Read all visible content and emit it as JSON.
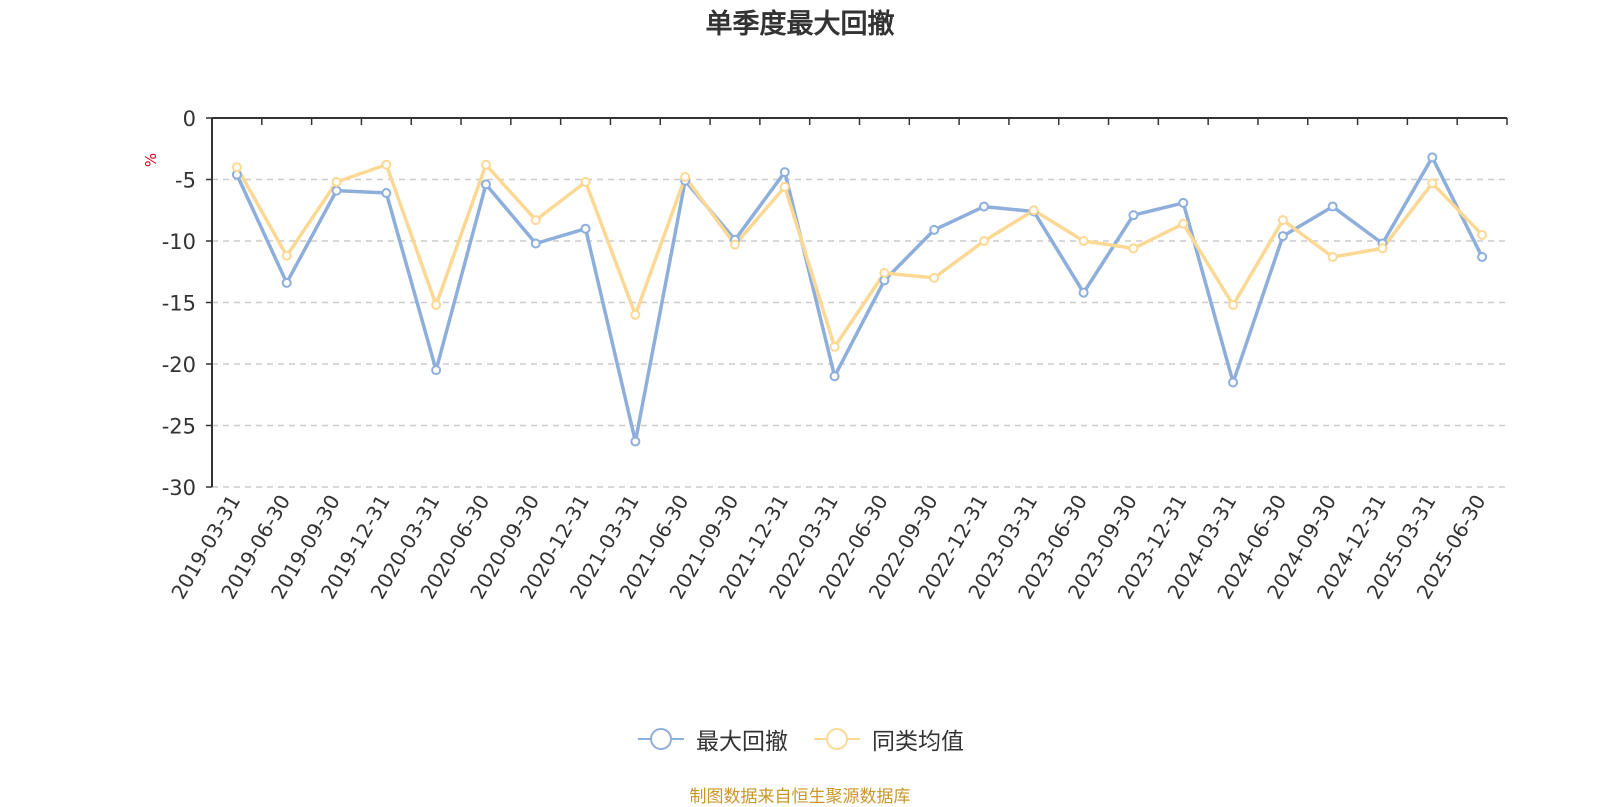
{
  "chart_data": {
    "type": "line",
    "title": "单季度最大回撤",
    "ylabel": "%",
    "xlabel": "",
    "ylim": [
      -30,
      0
    ],
    "yticks": [
      0,
      -5,
      -10,
      -15,
      -20,
      -25,
      -30
    ],
    "grid": true,
    "legend_position": "bottom",
    "categories": [
      "2019-03-31",
      "2019-06-30",
      "2019-09-30",
      "2019-12-31",
      "2020-03-31",
      "2020-06-30",
      "2020-09-30",
      "2020-12-31",
      "2021-03-31",
      "2021-06-30",
      "2021-09-30",
      "2021-12-31",
      "2022-03-31",
      "2022-06-30",
      "2022-09-30",
      "2022-12-31",
      "2023-03-31",
      "2023-06-30",
      "2023-09-30",
      "2023-12-31",
      "2024-03-31",
      "2024-06-30",
      "2024-09-30",
      "2024-12-31",
      "2025-03-31",
      "2025-06-30"
    ],
    "series": [
      {
        "name": "最大回撤",
        "color": "#8eaedb",
        "values": [
          -4.6,
          -13.4,
          -5.9,
          -6.1,
          -20.5,
          -5.4,
          -10.2,
          -9.0,
          -26.3,
          -5.1,
          -9.9,
          -4.4,
          -21.0,
          -13.2,
          -9.1,
          -7.2,
          -7.6,
          -14.2,
          -7.9,
          -6.9,
          -21.5,
          -9.6,
          -7.2,
          -10.2,
          -3.2,
          -11.3
        ]
      },
      {
        "name": "同类均值",
        "color": "#fbd995",
        "values": [
          -4.0,
          -11.2,
          -5.2,
          -3.8,
          -15.2,
          -3.8,
          -8.3,
          -5.2,
          -16.0,
          -4.8,
          -10.3,
          -5.6,
          -18.6,
          -12.6,
          -13.0,
          -10.0,
          -7.5,
          -10.0,
          -10.6,
          -8.6,
          -15.2,
          -8.3,
          -11.3,
          -10.6,
          -5.3,
          -9.5
        ]
      }
    ]
  },
  "source_note": "制图数据来自恒生聚源数据库"
}
